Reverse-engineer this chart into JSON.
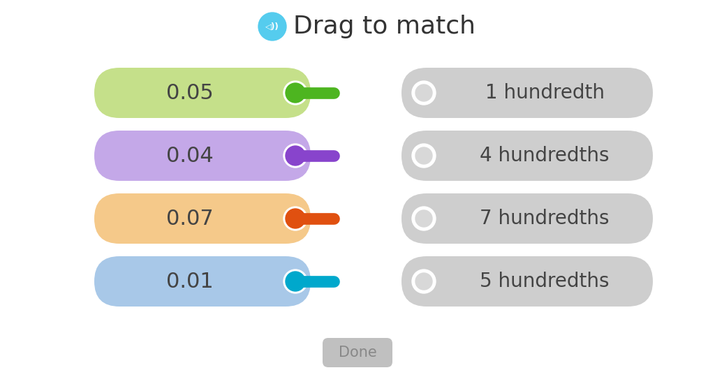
{
  "title": "Drag to match",
  "background_color": "#ffffff",
  "left_items": [
    {
      "label": "0.05",
      "color": "#c5e08a",
      "handle_color": "#4db520"
    },
    {
      "label": "0.04",
      "color": "#c4a8e8",
      "handle_color": "#8844cc"
    },
    {
      "label": "0.07",
      "color": "#f5c98a",
      "handle_color": "#e05010"
    },
    {
      "label": "0.01",
      "color": "#a8c8e8",
      "handle_color": "#00a8cc"
    }
  ],
  "right_items": [
    "1 hundredth",
    "4 hundredths",
    "7 hundredths",
    "5 hundredths"
  ],
  "done_label": "Done",
  "icon_color": "#55ccee",
  "title_color": "#333333",
  "right_bg_color": "#cecece",
  "right_text_color": "#444444",
  "done_bg_color": "#c0c0c0",
  "done_text_color": "#888888",
  "left_text_color": "#444444"
}
